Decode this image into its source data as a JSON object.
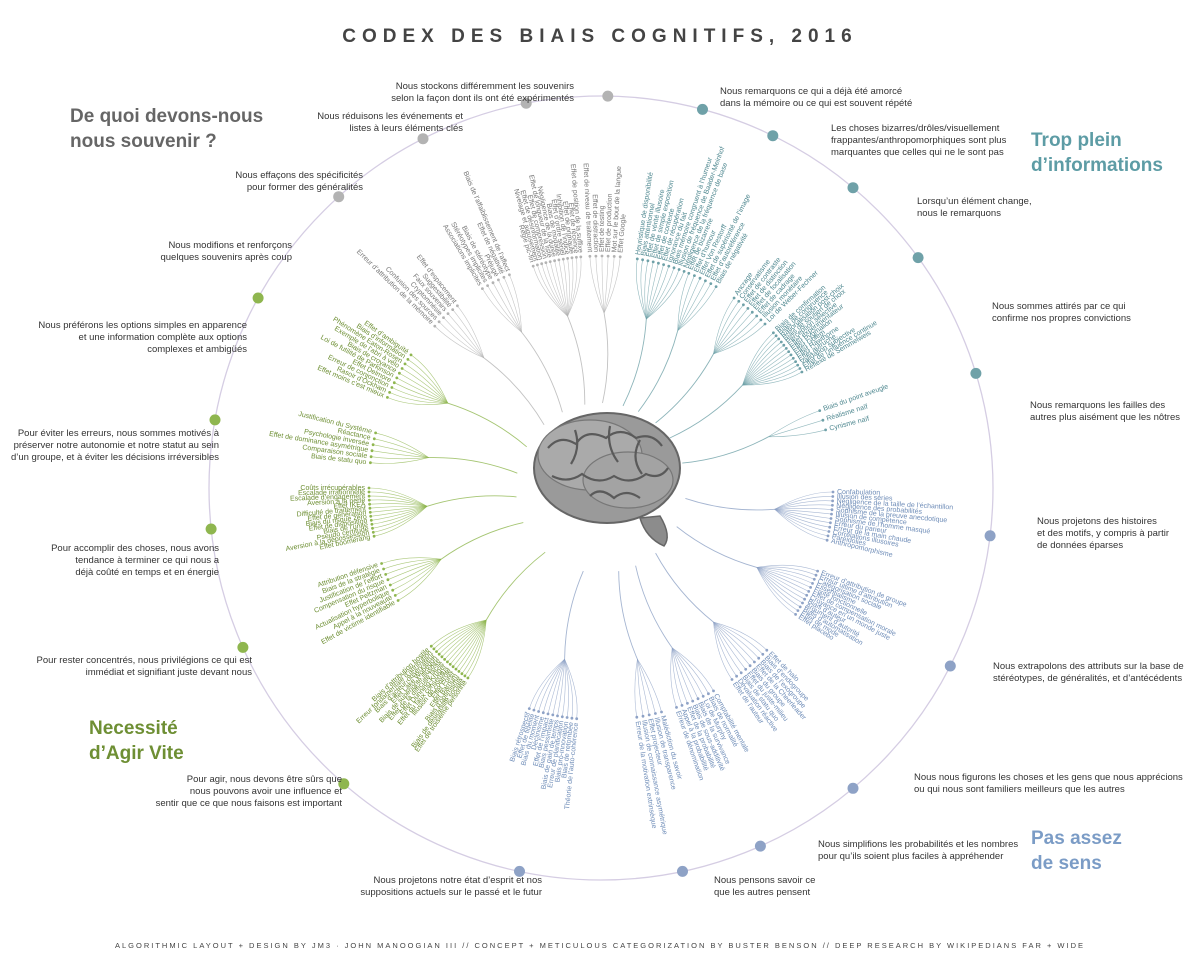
{
  "title": "CODEX DES BIAIS COGNITIFS, 2016",
  "footer": "ALGORITHMIC LAYOUT + DESIGN BY JM3 · JOHN MANOOGIAN III // CONCEPT + METICULOUS CATEGORIZATION BY BUSTER BENSON // DEEP RESEARCH BY WIKIPEDIANS FAR + WIDE",
  "colors": {
    "memory": "#b3b3b3",
    "info": "#6fa1a8",
    "meaning": "#8ea2c6",
    "act": "#8fb64f",
    "ring": "#d5cde3",
    "brain": "#8c8c8c"
  },
  "categories": {
    "memory": {
      "line1": "De quoi devons-nous",
      "line2": "nous souvenir ?",
      "color": "#666666"
    },
    "info": {
      "line1": "Trop plein",
      "line2": "d’informations",
      "color": "#5d9ca5"
    },
    "meaning": {
      "line1": "Pas assez",
      "line2": "de sens",
      "color": "#7b9cc6"
    },
    "act": {
      "line1": "Necessité",
      "line2": "d’Agir Vite",
      "color": "#6e8f34"
    }
  },
  "groups": [
    {
      "category": "info",
      "color": "#6fa1a8",
      "lines": [
        "Nous remarquons ce qui a déjà été amorcé",
        "dans la mémoire ou ce qui est souvent répété"
      ],
      "biases": [
        "Heuristique de disponibilité",
        "Biais attentionnel",
        "Effet de vérité illusoire",
        "Effet de simple exposition",
        "Effet de contexte",
        "Effet de récupération",
        "Ignorance du fait",
        "Biais mémoire congruent à l’humeur",
        "Illusion de fréquence de Baader-Meinhof",
        "Négligence de la fréquence de base"
      ]
    },
    {
      "category": "info",
      "color": "#6fa1a8",
      "lines": [
        "Les choses bizarres/drôles/visuellement",
        "frappantes/anthropomorphiques sont plus",
        "marquantes que celles qui ne le sont pas"
      ],
      "biases": [
        "Effet de bizarrerie",
        "Effet d’humour",
        "Effet Von Restorff",
        "Effet de supériorité de l’image",
        "Effet d’autoréférence",
        "Biais de négativité"
      ]
    },
    {
      "category": "info",
      "color": "#6fa1a8",
      "lines": [
        "Lorsqu’un élément change,",
        "nous le remarquons"
      ],
      "biases": [
        "Ancrage",
        "Conservatisme",
        "Effet de contraste",
        "Effet de distinction",
        "Effet de focalisation",
        "Effet de cadrage",
        "Illusion monétaire",
        "Loi de Weber-Fechner"
      ]
    },
    {
      "category": "info",
      "color": "#6fa1a8",
      "lines": [
        "Nous sommes attirés par ce qui",
        "confirme nos propres convictions"
      ],
      "biases": [
        "Biais de confirmation",
        "Biais de congruence",
        "Rationalisation post-choix",
        "Biais de soutien de choix",
        "Perception sélective",
        "Effet expérimentateur",
        "Effet Pygmalion",
        "Effet Golem",
        "Effet Hawthorne",
        "Effet autruche",
        "Validation subjective",
        "Effet de l’influence continue",
        "Réflexe de Semmelweis"
      ]
    },
    {
      "category": "info",
      "color": "#6fa1a8",
      "lines": [
        "Nous remarquons les failles des",
        "autres plus aisément que les nôtres"
      ],
      "biases": [
        "Biais du point aveugle",
        "Réalisme naïf",
        "Cynisme naïf"
      ]
    },
    {
      "category": "meaning",
      "color": "#8ea2c6",
      "lines": [
        "Nous projetons des histoires",
        "et des motifs, y compris à partir",
        "de données éparses"
      ],
      "biases": [
        "Confabulation",
        "Illusion des séries",
        "Négligence de la taille de l’échantillon",
        "Négligence des probabilités",
        "Sophisme de la preuve anecdotique",
        "Illusion de compétence",
        "Sophisme de l’homme masqué",
        "Erreur du parieur",
        "Erreur de la main chaude",
        "Corrélations illusoires",
        "Paréidolies",
        "Anthropomorphisme"
      ]
    },
    {
      "category": "meaning",
      "color": "#8ea2c6",
      "lines": [
        "Nous extrapolons des attributs sur la base de",
        "stéréotypes, de généralités, et d’antécédents"
      ],
      "biases": [
        "Erreur d’attribution de groupe",
        "Erreur ultime d’attribution",
        "Catégorisation sociale",
        "Essentialisme",
        "Fixité fonctionnelle",
        "Effet de compensation morale",
        "Croyance en un monde juste",
        "Biais d’auteur",
        "Argument d’autorité",
        "Biais d’automatisation",
        "Effet de mode",
        "Effet placebo"
      ]
    },
    {
      "category": "meaning",
      "color": "#8ea2c6",
      "lines": [
        "Nous nous figurons les choses et les gens que nous apprécions",
        "ou qui nous sont familiers meilleurs que les autres"
      ],
      "biases": [
        "Effet de halo",
        "Biais d’endogroupe",
        "Biais de l’exogroupe",
        "Effet de la Cheerleader",
        "Biais du groupe",
        "Effet du juste-milieu",
        "Biais de statu quo",
        "Dévaluation réactive",
        "Effet de l’auteur"
      ]
    },
    {
      "category": "meaning",
      "color": "#8ea2c6",
      "lines": [
        "Nous simplifions les probabilités et les nombres",
        "pour qu’ils soient plus faciles à appréhender"
      ],
      "biases": [
        "Comptabilité mentale",
        "Biais de normalité",
        "Loi de Murphy",
        "Biais de la survivance",
        "Biais de sous-additivité",
        "Effet de la probabilité",
        "Appel à la probabilité",
        "Erreur de dénomination"
      ]
    },
    {
      "category": "meaning",
      "color": "#8ea2c6",
      "lines": [
        "Nous pensons savoir ce",
        "que les autres pensent"
      ],
      "biases": [
        "Malédiction du savoir",
        "Illusion de transparence",
        "Effet projecteur",
        "Illusion de connaissance asymétrique",
        "Erreur de la motivation extrinsèque"
      ]
    },
    {
      "category": "meaning",
      "color": "#8ea2c6",
      "lines": [
        "Nous projetons notre état d’esprit et nos",
        "suppositions actuels sur le passé et le futur"
      ],
      "biases": [
        "Théorie de l’auto-cohérence",
        "Biais de retombée",
        "Biais pro-innovation",
        "Erreur de planification",
        "Biais de gain de temps",
        "Biais pessimiste",
        "Effet de l’impact",
        "Déclinisme",
        "Biais du moment",
        "Effet de fidélité",
        "Biais rétrospectif"
      ]
    },
    {
      "category": "act",
      "color": "#8fb64f",
      "lines": [
        "Pour agir, nous devons être sûrs que",
        "nous pouvons avoir une influence et",
        "sentir que ce que nous faisons est important"
      ],
      "biases": [
        "Effet de troisième personne",
        "Biais de désirabilité sociale",
        "Biais d’optimisme",
        "Effet Barnum",
        "Effet Forer",
        "Illusion de contrôle",
        "Effet du faux consensus",
        "Effet Dunning-Kruger",
        "Effet de la difficulté facile",
        "Biais de supériorité illusoire",
        "Effet Lake Wobegon",
        "Biais d’acteur-observateur",
        "Erreur fondamentale d’attribution",
        "Biais d’attribution hostile"
      ]
    },
    {
      "category": "act",
      "color": "#8fb64f",
      "lines": [
        "Pour rester concentrés, nous privilégions ce qui est",
        "immédiat et signifiant juste devant nous"
      ],
      "biases": [
        "Effet de victime identifiable",
        "Appel à la nouveauté",
        "Actualisation hyperbolique",
        "Effet Peltzman",
        "Compensation du risque",
        "Justification de l’effort",
        "Biais de la stratégie",
        "Attribution défensive"
      ]
    },
    {
      "category": "act",
      "color": "#8fb64f",
      "lines": [
        "Pour accomplir des choses, nous avons",
        "tendance à terminer ce qui nous a",
        "déjà coûté en temps et en énergie"
      ],
      "biases": [
        "Effet boomerang",
        "Aversion à la dépossession",
        "Pseudo certitude",
        "Biais de l’unité",
        "Effet de disposition",
        "Biais du risque zéro",
        "Effet de génération",
        "Difficulté de traitement",
        "Effet IKEA",
        "Aversion à la perte",
        "Escalade d’engagement",
        "Escalade irrationnelle",
        "Coûts irrécupérables"
      ]
    },
    {
      "category": "act",
      "color": "#8fb64f",
      "lines": [
        "Pour éviter les erreurs, nous sommes motivés à",
        "préserver notre autonomie et notre statut au sein",
        "d’un groupe, et à éviter les décisions irréversibles"
      ],
      "biases": [
        "Biais de statu quo",
        "Comparaison sociale",
        "Effet de dominance asymétrique",
        "Psychologie inversée",
        "Réactance",
        "Justification du Système"
      ]
    },
    {
      "category": "act",
      "color": "#8fb64f",
      "lines": [
        "Nous préférons les options simples en apparence",
        "et une information complète aux options",
        "complexes et ambigüés"
      ],
      "biases": [
        "Effet moins c’est mieux",
        "Rasoir d’Ockham",
        "Erreur de conjonction",
        "Effet Delmore",
        "Loi de futilité de Parkinson",
        "Biais de croyance",
        "Exemple de l’abri à vélo",
        "Phénomène Eaton-Rosen",
        "Biais d’information",
        "Effet d’ambiguïté"
      ]
    },
    {
      "category": "memory",
      "color": "#b3b3b3",
      "lines": [
        "Nous modifions et renforçons",
        "quelques souvenirs après coup"
      ],
      "biases": [
        "Erreur d’attribution de la mémoire",
        "Confusion des sources",
        "Cryptomnésie",
        "Faux souvenirs",
        "Suggestibilité",
        "Effet d’espacement"
      ]
    },
    {
      "category": "memory",
      "color": "#b3b3b3",
      "lines": [
        "Nous effaçons des spécificités",
        "pour former des généralités"
      ],
      "biases": [
        "Associations implicites",
        "Stéréotypes implicites",
        "Biais de stéréotype",
        "Préjugé",
        "Effet de négativité",
        "Biais de l’affaiblissement de l’affect"
      ]
    },
    {
      "category": "memory",
      "color": "#b3b3b3",
      "lines": [
        "Nous réduisons les événements et",
        "listes à leurs éléments clés"
      ],
      "biases": [
        "Règle pic-fin",
        "Nivelage et aiguisement",
        "Effet de désinformation",
        "Effet de compression",
        "Effet de longueur de la liste",
        "Négligence de la durée",
        "Biais de modalité",
        "Effet d’ordre sériel",
        "Inhibition de l’indice",
        "Effet de primauté",
        "Effet de récence",
        "Effet de position de la suffixe"
      ]
    },
    {
      "category": "memory",
      "color": "#b3b3b3",
      "lines": [
        "Nous stockons différemment les souvenirs",
        "selon la façon dont ils ont été expérimentés"
      ],
      "biases": [
        "Effet de niveau de traitement",
        "Effet de distraction",
        "Effet de testing",
        "Effet de production",
        "Mot sur le bout de la langue",
        "Effet Google"
      ]
    }
  ]
}
